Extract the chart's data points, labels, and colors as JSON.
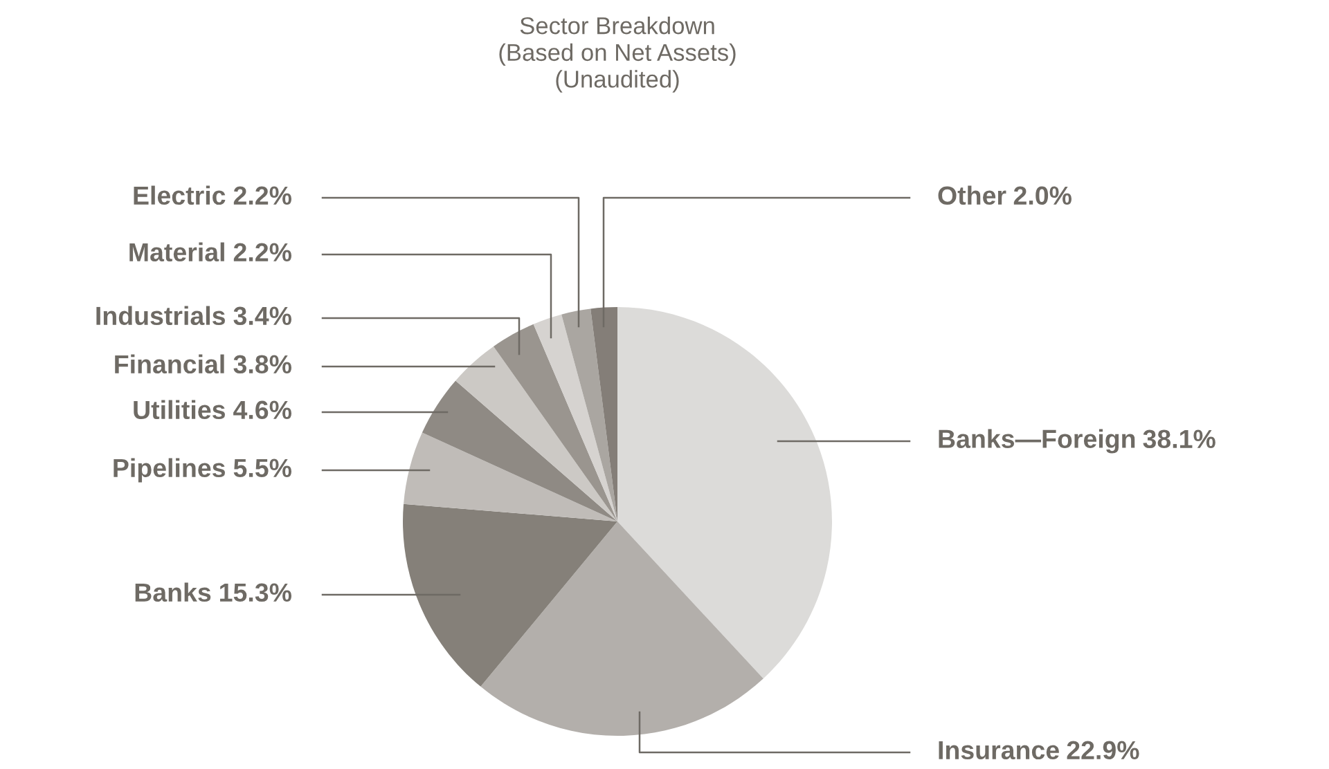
{
  "chart_data": {
    "type": "pie",
    "title": "Sector Breakdown\n(Based on Net Assets)\n(Unaudited)",
    "categories": [
      "Banks—Foreign",
      "Insurance",
      "Banks",
      "Pipelines",
      "Utilities",
      "Financial",
      "Industrials",
      "Material",
      "Electric",
      "Other"
    ],
    "values": [
      38.1,
      22.9,
      15.3,
      5.5,
      4.6,
      3.8,
      3.4,
      2.2,
      2.2,
      2.0
    ],
    "colors": [
      "#dcdbd9",
      "#b3afab",
      "#858079",
      "#c0bcb8",
      "#8f8a84",
      "#ccc9c5",
      "#9a958f",
      "#d6d3d0",
      "#aaa6a1",
      "#847e78"
    ],
    "value_labels": [
      "38.1%",
      "22.9%",
      "15.3%",
      "5.5%",
      "4.6%",
      "3.8%",
      "3.4%",
      "2.2%",
      "2.2%",
      "2.0%"
    ]
  }
}
